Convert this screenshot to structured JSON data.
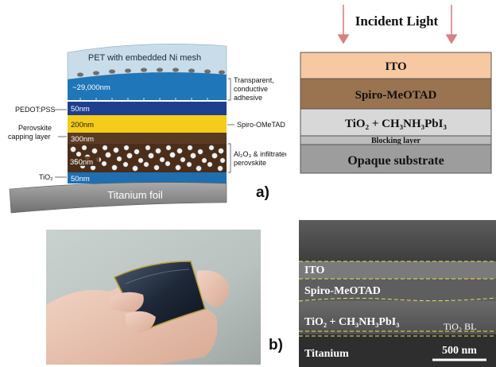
{
  "panel_a": {
    "pet_label": "PET with embedded Ni mesh",
    "adhesive_thickness": "~29,000nm",
    "pedot_thickness": "50nm",
    "spiro_thickness": "200nm",
    "capping_thickness": "300nm",
    "al2o3_thickness": "350nm",
    "tio2_thickness": "50nm",
    "foil_label": "Titanium foil",
    "left_pedot": "PEDOT:PSS",
    "left_capping_1": "Perovskite",
    "left_capping_2": "capping layer",
    "left_tio2": "TiO₂",
    "right_adhesive_1": "Transparent,",
    "right_adhesive_2": "conductive",
    "right_adhesive_3": "adhesive",
    "right_spiro": "Spiro-OMeTAD",
    "right_al2o3_1": "Al₂O₃ & infiltrated",
    "right_al2o3_2": "perovskite",
    "panel_label": "a)"
  },
  "stack": {
    "incident_light": "Incident Light",
    "ito": "ITO",
    "spiro": "Spiro-MeOTAD",
    "perovskite": "TiO₂ + CH₃NH₃PbI₃",
    "blocking": "Blocking layer",
    "substrate": "Opaque substrate"
  },
  "panel_b": {
    "panel_label": "b)"
  },
  "sem": {
    "ito": "ITO",
    "spiro": "Spiro-MeOTAD",
    "perovskite": "TiO₂ + CH₃NH₃PbI₃",
    "tio2_bl": "TiO₂ BL",
    "titanium": "Titanium",
    "scale": "500 nm"
  },
  "colors": {
    "pet": "#c8dde9",
    "adhesive": "#1f76b8",
    "pedot": "#1d3f8e",
    "spiro_yellow": "#f5cc1a",
    "capping_brown": "#5a3a22",
    "tio2_blue": "#1f6fb0",
    "foil_grey": "#8e8e8e",
    "ito_peach": "#f7c9a2",
    "spiro_brown": "#9a7350",
    "perov_grey": "#d8d8d8",
    "substrate_grey": "#9d9d9d",
    "light_arrow": "#d98080",
    "sem_dash": "#e8e05a"
  }
}
